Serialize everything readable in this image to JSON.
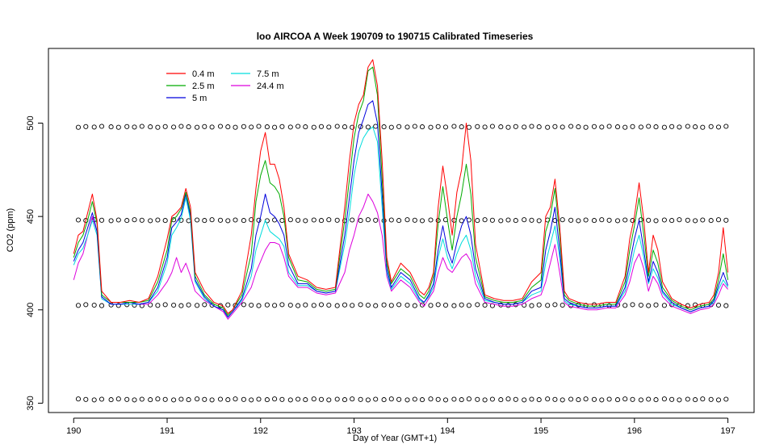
{
  "chart_data": {
    "type": "line",
    "title": "loo AIRCOA A  Week 190709 to 190715  Calibrated Timeseries",
    "xlabel": "Day of Year (GMT+1)",
    "ylabel": "CO2 (ppm)",
    "xlim": [
      189.73,
      197.28
    ],
    "ylim": [
      345,
      540
    ],
    "xticks": [
      190,
      191,
      192,
      193,
      194,
      195,
      196,
      197
    ],
    "xtick_labels": [
      "190",
      "191",
      "192",
      "193",
      "194",
      "195",
      "196",
      "197"
    ],
    "yticks": [
      350,
      400,
      450,
      500
    ],
    "ytick_labels": [
      "350",
      "400",
      "450",
      "500"
    ],
    "legend_position": "top-left",
    "series": [
      {
        "name": "0.4 m",
        "color": "#ff0000",
        "x": [
          190.0,
          190.05,
          190.1,
          190.15,
          190.2,
          190.25,
          190.3,
          190.4,
          190.5,
          190.6,
          190.7,
          190.8,
          190.9,
          191.0,
          191.05,
          191.1,
          191.15,
          191.2,
          191.25,
          191.3,
          191.4,
          191.5,
          191.6,
          191.65,
          191.7,
          191.8,
          191.9,
          191.95,
          192.0,
          192.05,
          192.1,
          192.15,
          192.2,
          192.25,
          192.3,
          192.4,
          192.5,
          192.6,
          192.7,
          192.8,
          192.9,
          192.95,
          193.0,
          193.05,
          193.1,
          193.15,
          193.2,
          193.25,
          193.3,
          193.35,
          193.4,
          193.5,
          193.6,
          193.7,
          193.75,
          193.8,
          193.85,
          193.9,
          193.95,
          194.0,
          194.05,
          194.1,
          194.15,
          194.2,
          194.25,
          194.3,
          194.4,
          194.5,
          194.6,
          194.7,
          194.8,
          194.9,
          195.0,
          195.05,
          195.1,
          195.15,
          195.2,
          195.25,
          195.3,
          195.4,
          195.5,
          195.6,
          195.7,
          195.8,
          195.9,
          195.95,
          196.0,
          196.05,
          196.1,
          196.15,
          196.2,
          196.25,
          196.3,
          196.4,
          196.5,
          196.6,
          196.7,
          196.8,
          196.85,
          196.9,
          196.95,
          197.0
        ],
        "y": [
          430,
          440,
          442,
          452,
          462,
          448,
          410,
          404,
          404,
          405,
          404,
          406,
          418,
          438,
          450,
          452,
          455,
          465,
          455,
          420,
          410,
          404,
          402,
          398,
          400,
          410,
          440,
          465,
          485,
          495,
          478,
          478,
          470,
          455,
          430,
          418,
          416,
          412,
          411,
          412,
          455,
          480,
          500,
          510,
          515,
          530,
          534,
          520,
          480,
          428,
          415,
          425,
          420,
          410,
          408,
          412,
          420,
          455,
          477,
          460,
          440,
          463,
          475,
          500,
          480,
          435,
          408,
          406,
          405,
          405,
          406,
          415,
          420,
          450,
          455,
          470,
          445,
          410,
          406,
          404,
          403,
          403,
          404,
          404,
          418,
          438,
          450,
          468,
          448,
          420,
          440,
          432,
          415,
          406,
          403,
          401,
          403,
          404,
          408,
          420,
          444,
          420
        ]
      },
      {
        "name": "2.5 m",
        "color": "#00aa00",
        "x": [
          190.0,
          190.05,
          190.1,
          190.15,
          190.2,
          190.25,
          190.3,
          190.4,
          190.5,
          190.6,
          190.7,
          190.8,
          190.9,
          191.0,
          191.05,
          191.1,
          191.15,
          191.2,
          191.25,
          191.3,
          191.4,
          191.5,
          191.6,
          191.65,
          191.7,
          191.8,
          191.9,
          191.95,
          192.0,
          192.05,
          192.1,
          192.15,
          192.2,
          192.25,
          192.3,
          192.4,
          192.5,
          192.6,
          192.7,
          192.8,
          192.9,
          192.95,
          193.0,
          193.05,
          193.1,
          193.15,
          193.2,
          193.25,
          193.3,
          193.35,
          193.4,
          193.5,
          193.6,
          193.7,
          193.75,
          193.8,
          193.85,
          193.9,
          193.95,
          194.0,
          194.05,
          194.1,
          194.15,
          194.2,
          194.25,
          194.3,
          194.4,
          194.5,
          194.6,
          194.7,
          194.8,
          194.9,
          195.0,
          195.05,
          195.1,
          195.15,
          195.2,
          195.25,
          195.3,
          195.4,
          195.5,
          195.6,
          195.7,
          195.8,
          195.9,
          195.95,
          196.0,
          196.05,
          196.1,
          196.15,
          196.2,
          196.25,
          196.3,
          196.4,
          196.5,
          196.6,
          196.7,
          196.8,
          196.85,
          196.9,
          196.95,
          197.0
        ],
        "y": [
          428,
          436,
          440,
          448,
          458,
          446,
          408,
          404,
          404,
          404,
          404,
          405,
          415,
          432,
          448,
          450,
          454,
          463,
          452,
          418,
          408,
          403,
          401,
          397,
          400,
          408,
          430,
          458,
          472,
          480,
          468,
          466,
          462,
          450,
          428,
          416,
          415,
          411,
          410,
          411,
          448,
          470,
          492,
          505,
          512,
          528,
          530,
          515,
          470,
          425,
          414,
          422,
          418,
          408,
          406,
          410,
          418,
          446,
          466,
          448,
          432,
          450,
          462,
          478,
          462,
          428,
          407,
          405,
          404,
          404,
          405,
          412,
          416,
          442,
          450,
          465,
          440,
          408,
          405,
          403,
          402,
          402,
          403,
          403,
          415,
          432,
          445,
          460,
          440,
          418,
          432,
          425,
          412,
          405,
          402,
          400,
          402,
          403,
          406,
          416,
          430,
          416
        ]
      },
      {
        "name": "5 m",
        "color": "#0000dd",
        "x": [
          190.0,
          190.05,
          190.1,
          190.15,
          190.2,
          190.25,
          190.3,
          190.4,
          190.5,
          190.6,
          190.7,
          190.8,
          190.9,
          191.0,
          191.05,
          191.1,
          191.15,
          191.2,
          191.25,
          191.3,
          191.4,
          191.5,
          191.6,
          191.65,
          191.7,
          191.8,
          191.9,
          191.95,
          192.0,
          192.05,
          192.1,
          192.15,
          192.2,
          192.25,
          192.3,
          192.4,
          192.5,
          192.6,
          192.7,
          192.8,
          192.9,
          192.95,
          193.0,
          193.05,
          193.1,
          193.15,
          193.2,
          193.25,
          193.3,
          193.35,
          193.4,
          193.5,
          193.6,
          193.7,
          193.75,
          193.8,
          193.85,
          193.9,
          193.95,
          194.0,
          194.05,
          194.1,
          194.15,
          194.2,
          194.25,
          194.3,
          194.4,
          194.5,
          194.6,
          194.7,
          194.8,
          194.9,
          195.0,
          195.05,
          195.1,
          195.15,
          195.2,
          195.25,
          195.3,
          195.4,
          195.5,
          195.6,
          195.7,
          195.8,
          195.9,
          195.95,
          196.0,
          196.05,
          196.1,
          196.15,
          196.2,
          196.25,
          196.3,
          196.4,
          196.5,
          196.6,
          196.7,
          196.8,
          196.85,
          196.9,
          196.95,
          197.0
        ],
        "y": [
          426,
          432,
          436,
          444,
          452,
          442,
          407,
          403,
          403,
          404,
          403,
          404,
          412,
          428,
          444,
          447,
          451,
          462,
          450,
          416,
          407,
          402,
          400,
          396,
          399,
          406,
          422,
          440,
          450,
          462,
          452,
          450,
          446,
          440,
          424,
          414,
          414,
          410,
          409,
          410,
          440,
          460,
          480,
          495,
          502,
          510,
          512,
          500,
          462,
          422,
          412,
          420,
          416,
          406,
          404,
          408,
          414,
          432,
          445,
          432,
          425,
          436,
          445,
          450,
          440,
          422,
          406,
          404,
          403,
          403,
          404,
          410,
          412,
          432,
          442,
          455,
          432,
          406,
          404,
          402,
          401,
          401,
          402,
          402,
          412,
          425,
          438,
          448,
          432,
          415,
          426,
          420,
          410,
          404,
          401,
          399,
          401,
          402,
          405,
          413,
          420,
          413
        ]
      },
      {
        "name": "7.5 m",
        "color": "#00dddd",
        "x": [
          190.0,
          190.05,
          190.1,
          190.15,
          190.2,
          190.25,
          190.3,
          190.4,
          190.5,
          190.6,
          190.7,
          190.8,
          190.9,
          191.0,
          191.05,
          191.1,
          191.15,
          191.2,
          191.25,
          191.3,
          191.4,
          191.5,
          191.6,
          191.65,
          191.7,
          191.8,
          191.9,
          191.95,
          192.0,
          192.05,
          192.1,
          192.15,
          192.2,
          192.25,
          192.3,
          192.4,
          192.5,
          192.6,
          192.7,
          192.8,
          192.9,
          192.95,
          193.0,
          193.05,
          193.1,
          193.15,
          193.2,
          193.25,
          193.3,
          193.35,
          193.4,
          193.5,
          193.6,
          193.7,
          193.75,
          193.8,
          193.85,
          193.9,
          193.95,
          194.0,
          194.05,
          194.1,
          194.15,
          194.2,
          194.25,
          194.3,
          194.4,
          194.5,
          194.6,
          194.7,
          194.8,
          194.9,
          195.0,
          195.05,
          195.1,
          195.15,
          195.2,
          195.25,
          195.3,
          195.4,
          195.5,
          195.6,
          195.7,
          195.8,
          195.9,
          195.95,
          196.0,
          196.05,
          196.1,
          196.15,
          196.2,
          196.25,
          196.3,
          196.4,
          196.5,
          196.6,
          196.7,
          196.8,
          196.85,
          196.9,
          196.95,
          197.0
        ],
        "y": [
          424,
          430,
          433,
          440,
          448,
          440,
          406,
          403,
          403,
          403,
          403,
          404,
          410,
          425,
          440,
          444,
          449,
          460,
          448,
          415,
          406,
          402,
          400,
          396,
          399,
          405,
          418,
          432,
          440,
          448,
          442,
          440,
          438,
          434,
          420,
          413,
          413,
          410,
          409,
          410,
          435,
          452,
          472,
          485,
          492,
          496,
          498,
          490,
          455,
          420,
          411,
          418,
          414,
          405,
          404,
          407,
          412,
          428,
          438,
          428,
          422,
          430,
          436,
          440,
          432,
          418,
          405,
          404,
          403,
          403,
          404,
          408,
          410,
          425,
          435,
          445,
          428,
          405,
          403,
          402,
          401,
          401,
          402,
          402,
          410,
          420,
          432,
          440,
          428,
          414,
          422,
          417,
          409,
          403,
          401,
          399,
          401,
          402,
          404,
          411,
          416,
          412
        ]
      },
      {
        "name": "24.4 m",
        "color": "#dd00dd",
        "x": [
          190.0,
          190.05,
          190.1,
          190.15,
          190.2,
          190.25,
          190.3,
          190.4,
          190.5,
          190.6,
          190.7,
          190.8,
          190.9,
          191.0,
          191.05,
          191.1,
          191.15,
          191.2,
          191.25,
          191.3,
          191.4,
          191.5,
          191.6,
          191.65,
          191.7,
          191.8,
          191.9,
          191.95,
          192.0,
          192.05,
          192.1,
          192.15,
          192.2,
          192.25,
          192.3,
          192.4,
          192.5,
          192.6,
          192.7,
          192.8,
          192.9,
          192.95,
          193.0,
          193.05,
          193.1,
          193.15,
          193.2,
          193.25,
          193.3,
          193.35,
          193.4,
          193.5,
          193.6,
          193.7,
          193.75,
          193.8,
          193.85,
          193.9,
          193.95,
          194.0,
          194.05,
          194.1,
          194.15,
          194.2,
          194.25,
          194.3,
          194.4,
          194.5,
          194.6,
          194.7,
          194.8,
          194.9,
          195.0,
          195.05,
          195.1,
          195.15,
          195.2,
          195.25,
          195.3,
          195.4,
          195.5,
          195.6,
          195.7,
          195.8,
          195.9,
          195.95,
          196.0,
          196.05,
          196.1,
          196.15,
          196.2,
          196.25,
          196.3,
          196.4,
          196.5,
          196.6,
          196.7,
          196.8,
          196.85,
          196.9,
          196.95,
          197.0
        ],
        "y": [
          416,
          425,
          430,
          440,
          450,
          442,
          406,
          403,
          403,
          403,
          403,
          403,
          408,
          415,
          420,
          428,
          420,
          425,
          418,
          410,
          405,
          402,
          399,
          395,
          398,
          404,
          412,
          420,
          426,
          432,
          436,
          436,
          435,
          428,
          418,
          412,
          412,
          409,
          408,
          409,
          420,
          432,
          440,
          450,
          455,
          462,
          458,
          452,
          440,
          418,
          410,
          416,
          412,
          404,
          402,
          406,
          410,
          420,
          428,
          422,
          420,
          424,
          428,
          430,
          426,
          414,
          404,
          403,
          402,
          402,
          403,
          406,
          408,
          415,
          425,
          435,
          420,
          404,
          402,
          401,
          400,
          400,
          401,
          401,
          408,
          415,
          425,
          430,
          422,
          410,
          418,
          414,
          407,
          402,
          400,
          398,
          400,
          401,
          403,
          408,
          414,
          411
        ]
      }
    ],
    "markers": {
      "symbol": "open-circle",
      "levels": [
        352,
        402.5,
        448,
        498
      ],
      "x": [
        190.05,
        190.13,
        190.22,
        190.3,
        190.4,
        190.48,
        190.57,
        190.65,
        190.73,
        190.82,
        190.9,
        190.98,
        191.07,
        191.15,
        191.23,
        191.32,
        191.4,
        191.48,
        191.57,
        191.65,
        191.73,
        191.82,
        191.9,
        191.98,
        192.07,
        192.15,
        192.23,
        192.32,
        192.4,
        192.48,
        192.57,
        192.65,
        192.73,
        192.82,
        192.9,
        192.98,
        193.07,
        193.15,
        193.23,
        193.32,
        193.4,
        193.48,
        193.57,
        193.65,
        193.73,
        193.82,
        193.9,
        193.98,
        194.07,
        194.15,
        194.23,
        194.32,
        194.4,
        194.48,
        194.57,
        194.65,
        194.73,
        194.82,
        194.9,
        194.98,
        195.07,
        195.15,
        195.23,
        195.32,
        195.4,
        195.48,
        195.57,
        195.65,
        195.73,
        195.82,
        195.9,
        195.98,
        196.07,
        196.15,
        196.23,
        196.32,
        196.4,
        196.48,
        196.57,
        196.65,
        196.73,
        196.82,
        196.9,
        196.98
      ]
    }
  }
}
